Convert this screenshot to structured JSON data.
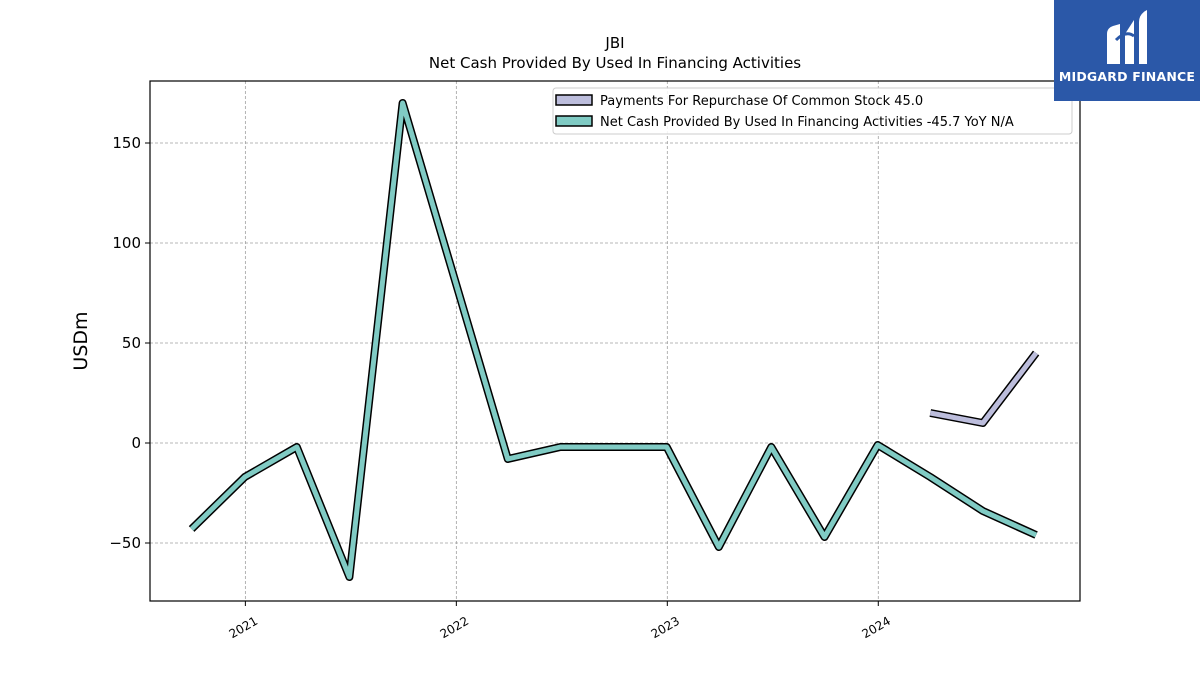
{
  "chart_data": {
    "type": "line",
    "title": "JBI",
    "subtitle": "Net Cash Provided By Used In Financing Activities",
    "ylabel": "USDm",
    "xlabel": "",
    "ylim": [
      -79,
      181
    ],
    "xlim": [
      "2020-07-20",
      "2024-12-15"
    ],
    "x_ticks": [
      "2021",
      "2022",
      "2023",
      "2024"
    ],
    "x_tick_dates": [
      "2021-01-01",
      "2022-01-01",
      "2023-01-01",
      "2024-01-01"
    ],
    "y_ticks": [
      -50,
      0,
      50,
      100,
      150
    ],
    "y_tick_labels": [
      "−50",
      "0",
      "50",
      "100",
      "150"
    ],
    "grid": true,
    "legend_position": "top-right",
    "series": [
      {
        "name": "Payments For Repurchase Of Common Stock",
        "legend": "Payments For Repurchase Of Common Stock  45.0",
        "color": "#bcbddc",
        "x": [
          "2024-03-31",
          "2024-06-30",
          "2024-09-30"
        ],
        "values": [
          15,
          10,
          45
        ]
      },
      {
        "name": "Net Cash Provided By Used In Financing Activities",
        "legend": "Net Cash Provided By Used In Financing Activities  -45.7 YoY N/A",
        "color": "#80cbc4",
        "x": [
          "2020-09-30",
          "2020-12-31",
          "2021-03-31",
          "2021-06-30",
          "2021-09-30",
          "2021-12-31",
          "2022-03-31",
          "2022-06-30",
          "2022-09-30",
          "2022-12-31",
          "2023-03-31",
          "2023-06-30",
          "2023-09-30",
          "2023-12-31",
          "2024-03-31",
          "2024-06-30",
          "2024-09-30"
        ],
        "values": [
          -43,
          -17,
          -2,
          -67,
          170,
          80,
          -8,
          -2,
          -2,
          -2,
          -52,
          -2,
          -47,
          -1,
          -17,
          -34,
          -46
        ]
      }
    ]
  },
  "logo": {
    "text": "MIDGARD FINANCE",
    "color": "#2b58a8"
  }
}
